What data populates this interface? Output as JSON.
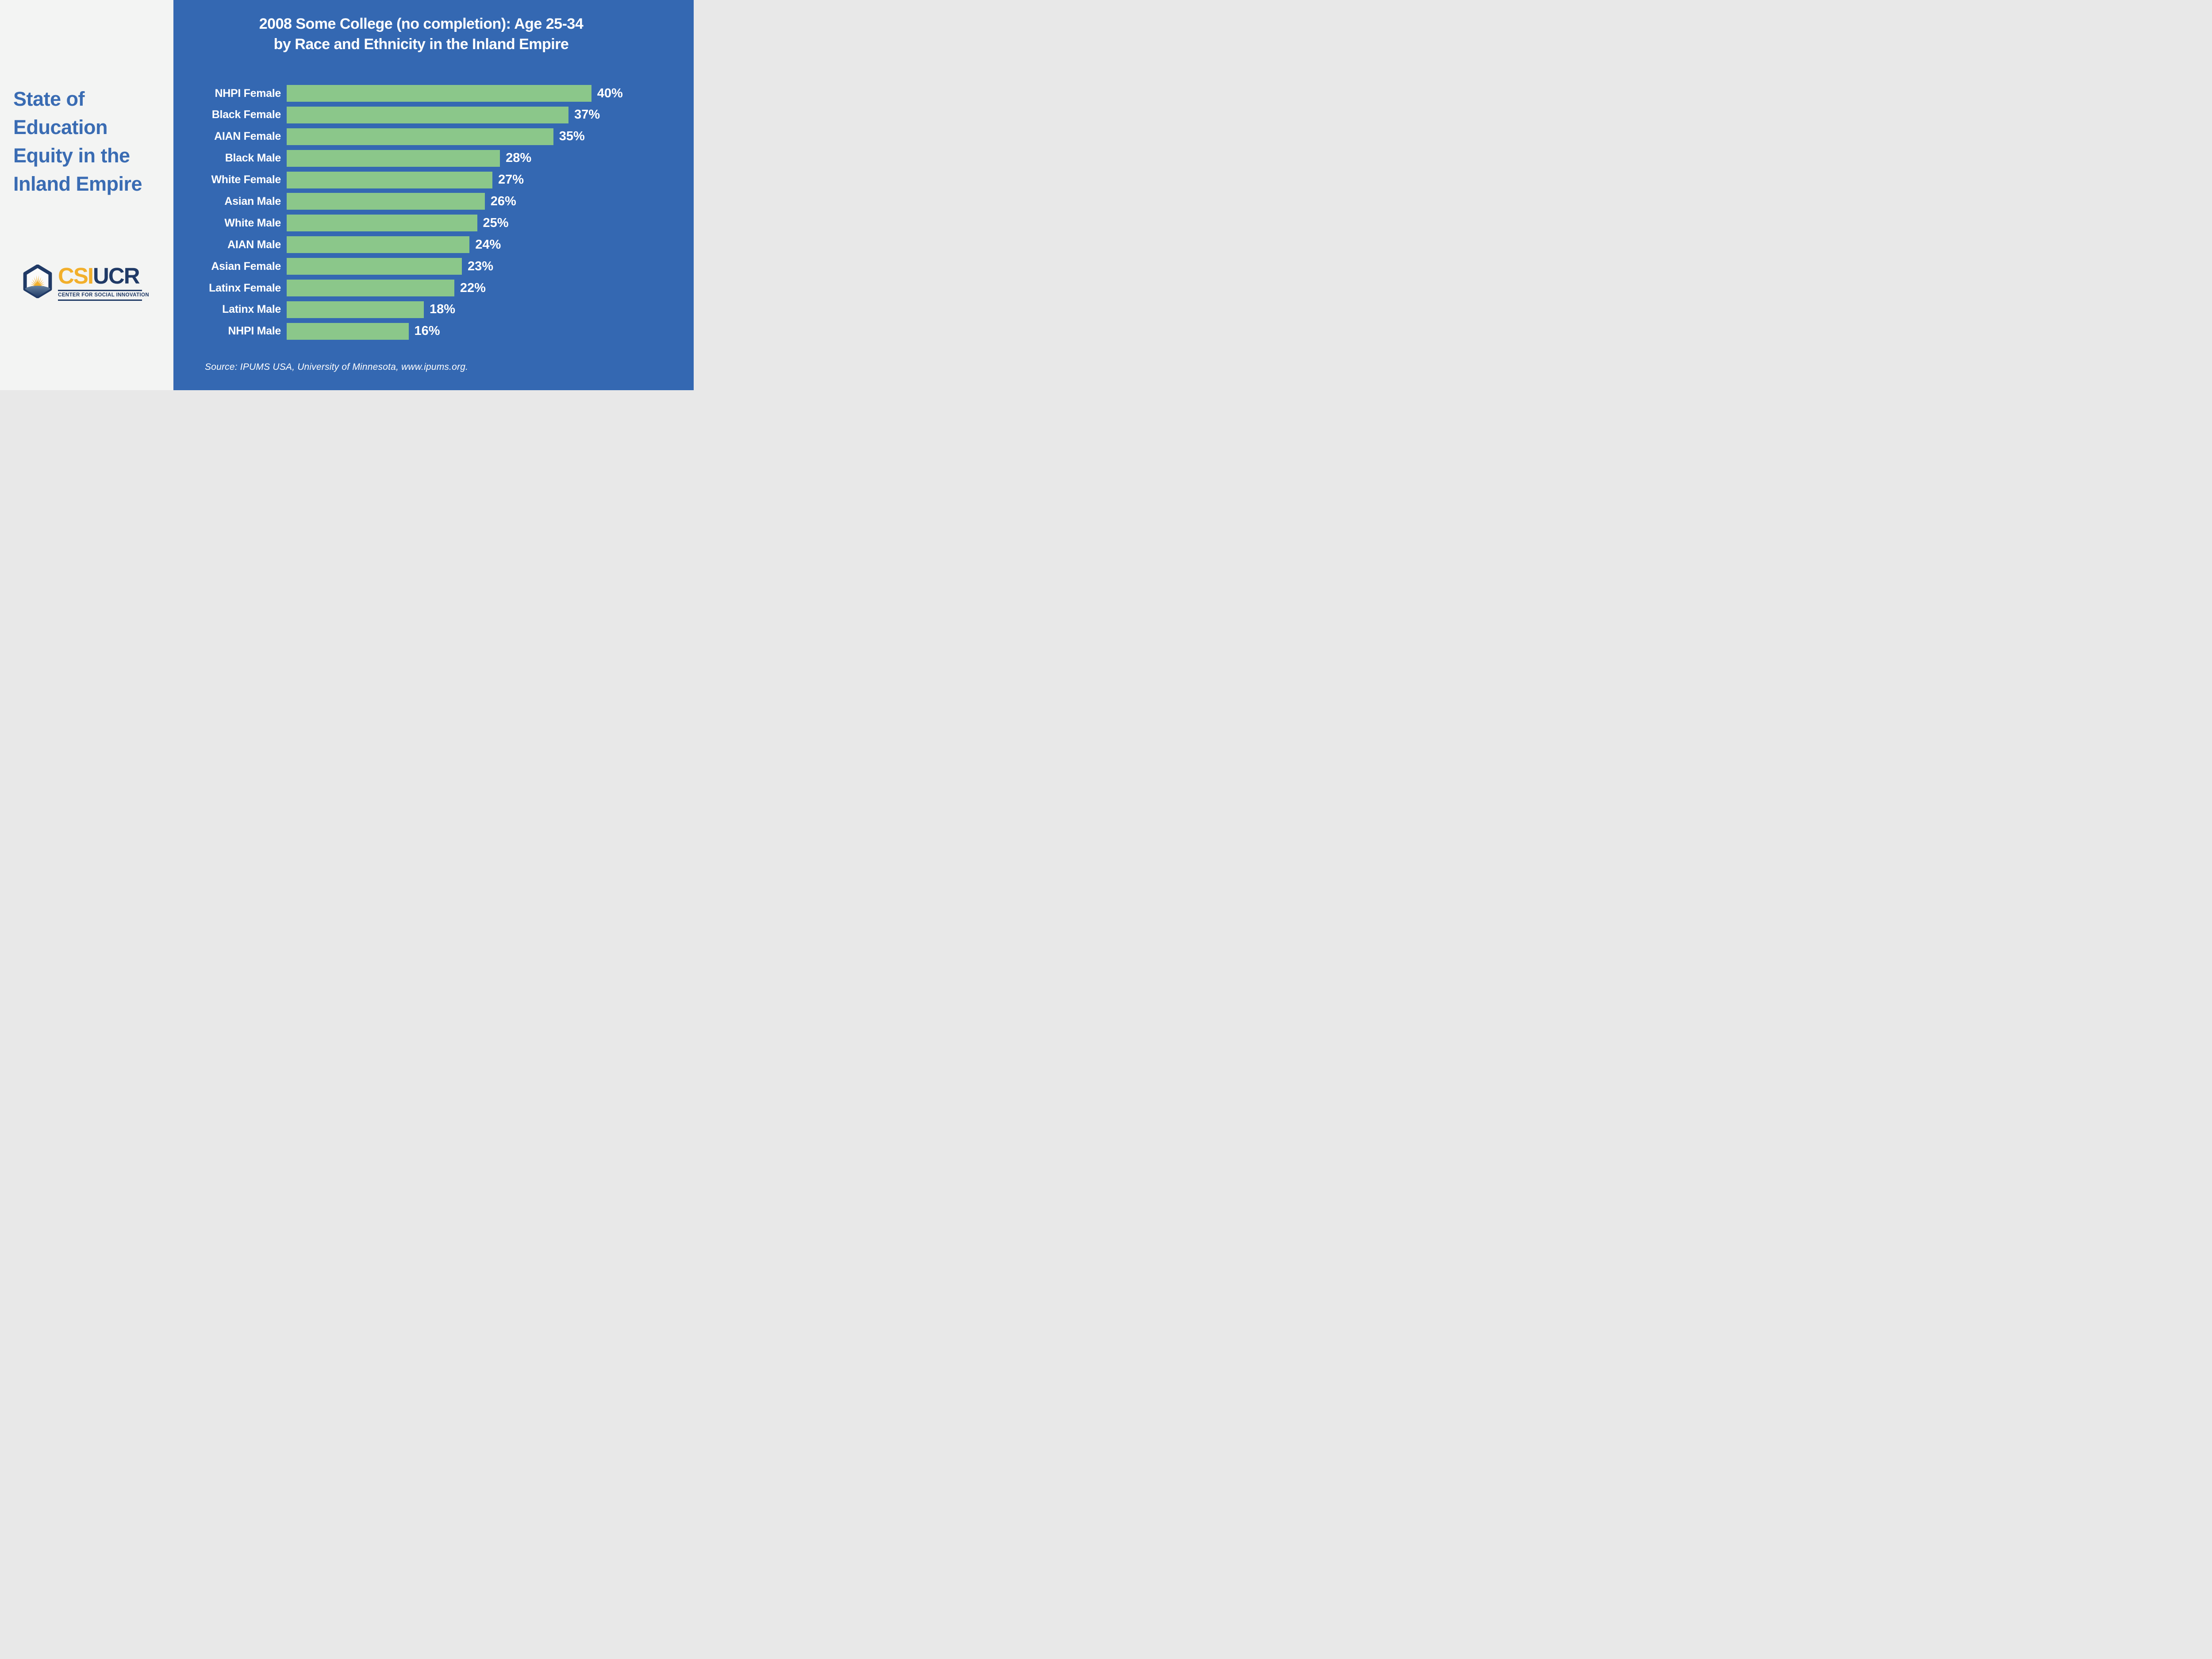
{
  "sidebar": {
    "title_lines": [
      "State of",
      "Education",
      "Equity in the",
      "Inland Empire"
    ],
    "logo": {
      "csi": "CSI",
      "ucr": "UCR",
      "tagline": "CENTER FOR SOCIAL INNOVATION"
    }
  },
  "chart": {
    "title_line1": "2008 Some College (no completion): Age 25-34",
    "title_line2": "by Race and Ethnicity in the Inland Empire",
    "source": "Source: IPUMS USA, University of Minnesota, www.ipums.org."
  },
  "chart_data": {
    "type": "bar",
    "orientation": "horizontal",
    "title": "2008 Some College (no completion): Age 25-34 by Race and Ethnicity in the Inland Empire",
    "categories": [
      "NHPI Female",
      "Black Female",
      "AIAN Female",
      "Black Male",
      "White Female",
      "Asian Male",
      "White Male",
      "AIAN Male",
      "Asian Female",
      "Latinx Female",
      "Latinx Male",
      "NHPI Male"
    ],
    "values": [
      40,
      37,
      35,
      28,
      27,
      26,
      25,
      24,
      23,
      22,
      18,
      16
    ],
    "unit": "%",
    "data_labels": [
      "40%",
      "37%",
      "35%",
      "28%",
      "27%",
      "26%",
      "25%",
      "24%",
      "23%",
      "22%",
      "18%",
      "16%"
    ],
    "xlim": [
      0,
      40
    ],
    "grid": false,
    "legend": false,
    "sort": "descending",
    "bar_color": "#8BC78A",
    "background_color": "#3468B2",
    "label_color": "#FFFFFF",
    "source": "Source: IPUMS USA, University of Minnesota, www.ipums.org."
  },
  "colors": {
    "panel_blue": "#3468B2",
    "bar_green": "#8BC78A",
    "sidebar_bg": "#F3F4F3",
    "sidebar_title_blue": "#3A6CB3",
    "logo_navy": "#203A66",
    "logo_gold": "#F2AF2B",
    "white": "#FFFFFF"
  }
}
